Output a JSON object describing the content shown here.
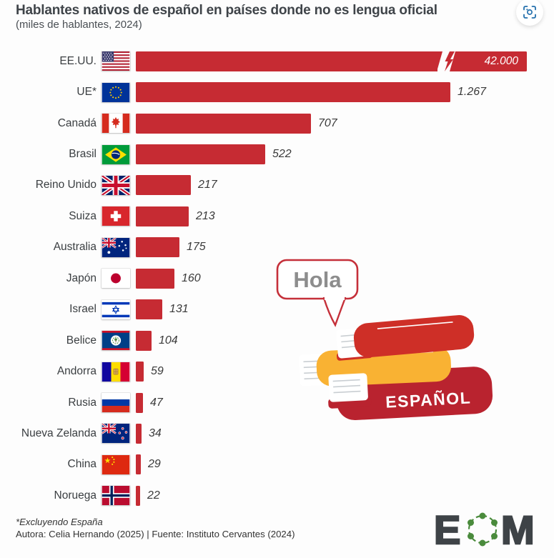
{
  "header": {
    "title": "Hablantes nativos de español en países donde no es lengua oficial",
    "subtitle": "(miles de hablantes, 2024)",
    "action_icon": "camera-focus-icon"
  },
  "chart_data": {
    "type": "bar",
    "orientation": "horizontal",
    "title": "Hablantes nativos de español en países donde no es lengua oficial",
    "unit_label": "miles de hablantes",
    "year": "2024",
    "bar_color": "#c62b33",
    "broken_bar": "EE.UU.",
    "categories": [
      "EE.UU.",
      "UE*",
      "Canadá",
      "Brasil",
      "Reino Unido",
      "Suiza",
      "Australia",
      "Japón",
      "Israel",
      "Belice",
      "Andorra",
      "Rusia",
      "Nueva Zelanda",
      "China",
      "Noruega"
    ],
    "values": [
      42000,
      1267,
      707,
      522,
      217,
      213,
      175,
      160,
      131,
      104,
      59,
      47,
      34,
      29,
      22
    ],
    "display_values": [
      "42.000",
      "1.267",
      "707",
      "522",
      "217",
      "213",
      "175",
      "160",
      "131",
      "104",
      "59",
      "47",
      "34",
      "29",
      "22"
    ],
    "flags": [
      "us",
      "eu",
      "ca",
      "br",
      "gb",
      "ch",
      "au",
      "jp",
      "il",
      "bz",
      "ad",
      "ru",
      "nz",
      "cn",
      "no"
    ],
    "legend": "none",
    "grid": "off"
  },
  "illustration": {
    "speech_bubble_text": "Hola",
    "book_label": "ESPAÑOL",
    "colors": {
      "top_book": "#ce2f27",
      "middle_book": "#f9b233",
      "bottom_book": "#b9232f",
      "bubble_stroke": "#c5303a",
      "bubble_text": "#8d8d8d"
    }
  },
  "footer": {
    "note": "*Excluyendo España",
    "credit": "Autora: Celia Hernando (2025) | Fuente: Instituto Cervantes (2024)"
  },
  "logo": {
    "text": "EOM",
    "letter_left": "E",
    "letter_right": "M",
    "dark_color": "#3e4347",
    "green_color": "#4a8b3c"
  }
}
